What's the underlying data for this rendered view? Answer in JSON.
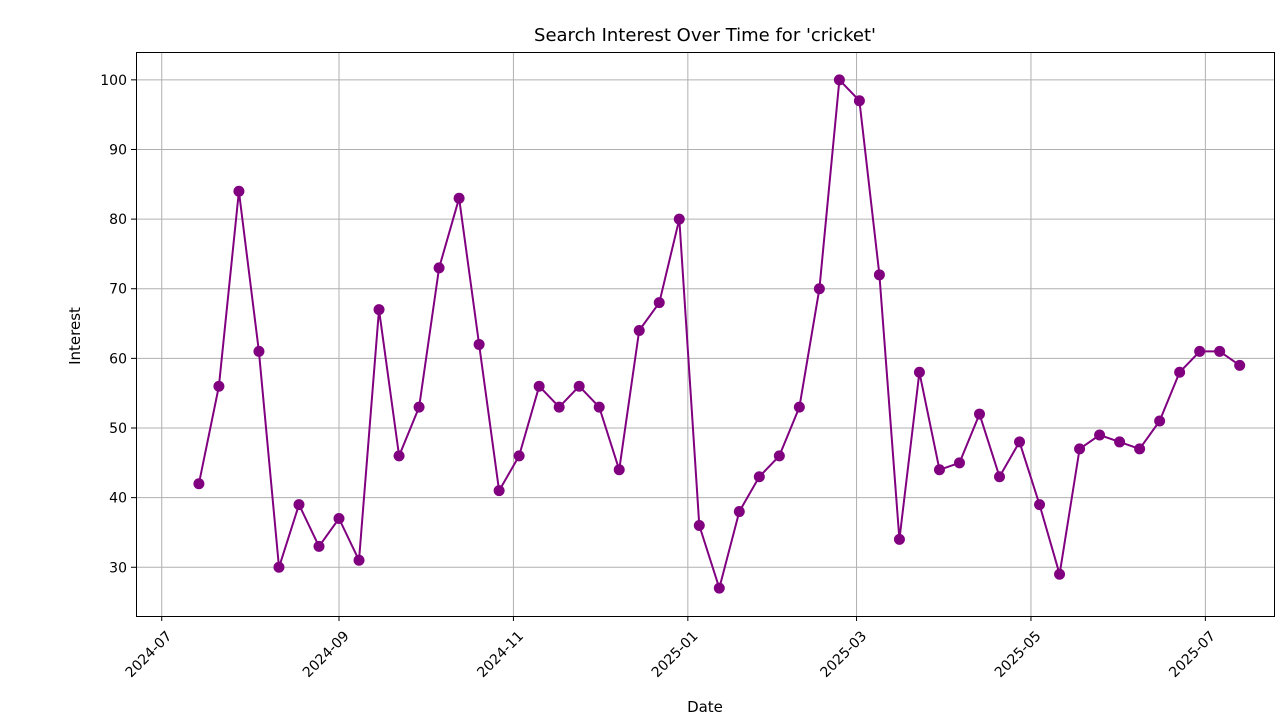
{
  "chart_data": {
    "type": "line",
    "title": "Search Interest Over Time for 'cricket'",
    "xlabel": "Date",
    "ylabel": "Interest",
    "xlim": [
      "2024-06-22",
      "2025-07-25"
    ],
    "ylim": [
      23,
      104
    ],
    "grid": true,
    "legend": "none",
    "x_ticks": [
      "2024-07",
      "2024-09",
      "2024-11",
      "2025-01",
      "2025-03",
      "2025-05",
      "2025-07"
    ],
    "y_ticks": [
      30,
      40,
      50,
      60,
      70,
      80,
      90,
      100
    ],
    "colors": {
      "series": "#800080",
      "grid": "#b0b0b0"
    },
    "series": [
      {
        "x": [
          "2024-07-14",
          "2024-07-21",
          "2024-07-28",
          "2024-08-04",
          "2024-08-11",
          "2024-08-18",
          "2024-08-25",
          "2024-09-01",
          "2024-09-08",
          "2024-09-15",
          "2024-09-22",
          "2024-09-29",
          "2024-10-06",
          "2024-10-13",
          "2024-10-20",
          "2024-10-27",
          "2024-11-03",
          "2024-11-10",
          "2024-11-17",
          "2024-11-24",
          "2024-12-01",
          "2024-12-08",
          "2024-12-15",
          "2024-12-22",
          "2024-12-29",
          "2025-01-05",
          "2025-01-12",
          "2025-01-19",
          "2025-01-26",
          "2025-02-02",
          "2025-02-09",
          "2025-02-16",
          "2025-02-23",
          "2025-03-02",
          "2025-03-09",
          "2025-03-16",
          "2025-03-23",
          "2025-03-30",
          "2025-04-06",
          "2025-04-13",
          "2025-04-20",
          "2025-04-27",
          "2025-05-04",
          "2025-05-11",
          "2025-05-18",
          "2025-05-25",
          "2025-06-01",
          "2025-06-08",
          "2025-06-15",
          "2025-06-22",
          "2025-06-29",
          "2025-07-06",
          "2025-07-13"
        ],
        "values": [
          42,
          56,
          84,
          61,
          30,
          39,
          33,
          37,
          31,
          67,
          46,
          53,
          73,
          83,
          62,
          41,
          46,
          56,
          53,
          56,
          53,
          44,
          64,
          68,
          80,
          36,
          27,
          38,
          43,
          46,
          53,
          70,
          100,
          97,
          72,
          34,
          58,
          44,
          45,
          52,
          43,
          48,
          39,
          29,
          47,
          49,
          48,
          47,
          51,
          58,
          61,
          61,
          59
        ]
      }
    ]
  }
}
